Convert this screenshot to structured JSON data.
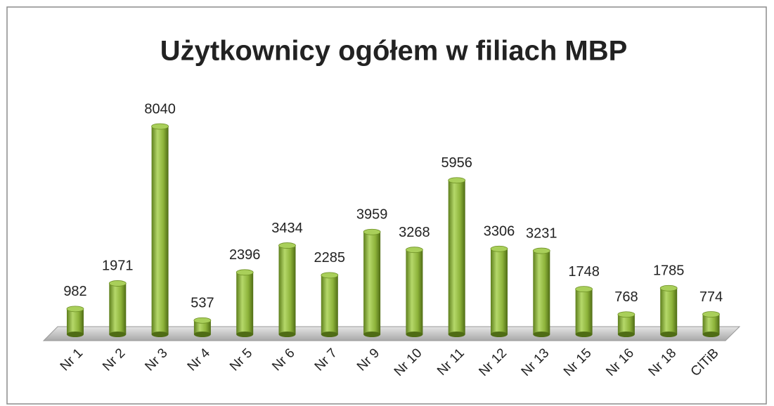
{
  "chart_data": {
    "type": "bar",
    "title": "Użytkownicy ogółem w filiach MBP",
    "categories": [
      "Nr 1",
      "Nr 2",
      "Nr 3",
      "Nr 4",
      "Nr 5",
      "Nr 6",
      "Nr 7",
      "Nr 9",
      "Nr 10",
      "Nr 11",
      "Nr 12",
      "Nr 13",
      "Nr 15",
      "Nr 16",
      "Nr 18",
      "CITiB"
    ],
    "values": [
      982,
      1971,
      8040,
      537,
      2396,
      3434,
      2285,
      3959,
      3268,
      5956,
      3306,
      3231,
      1748,
      768,
      1785,
      774
    ],
    "color": "#8db33a"
  }
}
